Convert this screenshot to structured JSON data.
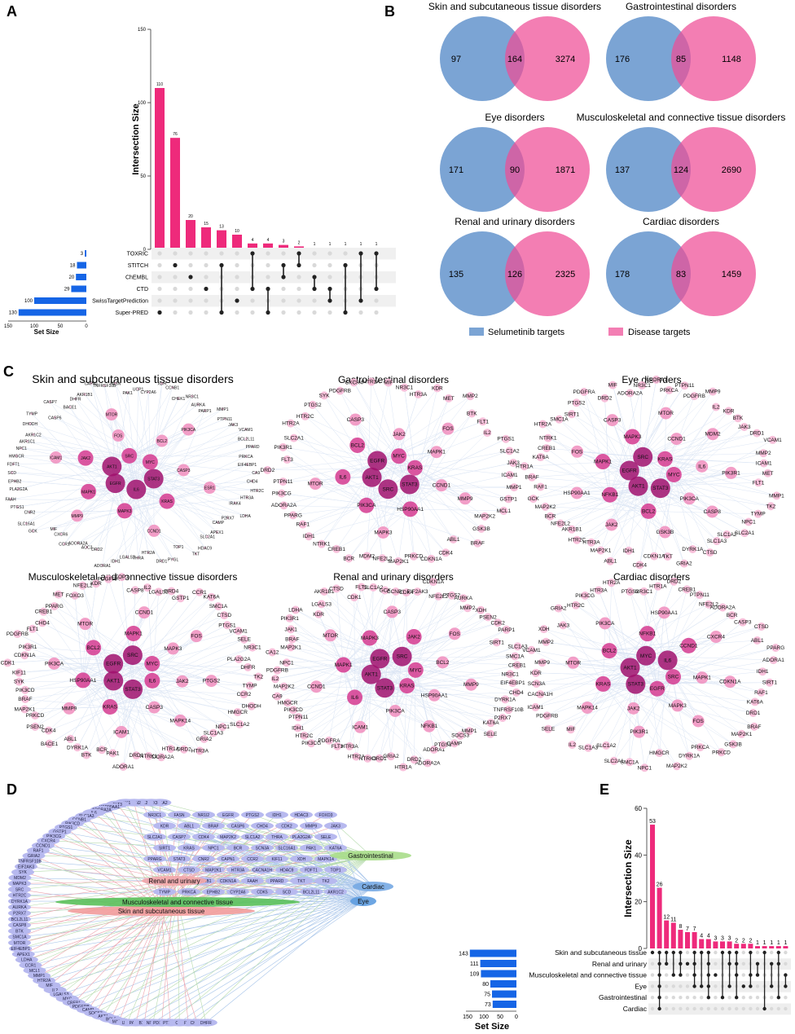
{
  "colors": {
    "pink": "#ee2a7b",
    "pink_venn": "#ee4c96",
    "blue_venn": "#4f86c6",
    "blue_bar": "#1565e6",
    "dark_dot": "#222222",
    "light_dot": "#d9d9d9",
    "node_dark": "#a0116d",
    "node_mid": "#d53a8f",
    "node_light": "#f08dbd",
    "edge": "#9ab6e0",
    "pill_blue": "#b7b9ef",
    "red_edge": "#d9334a",
    "green_edge": "#5fb04a",
    "blue_edge": "#3f7fd0"
  },
  "panels": {
    "a": "A",
    "b": "B",
    "c": "C",
    "d": "D",
    "e": "E"
  },
  "chart_data": [
    {
      "type": "bar",
      "panel": "A",
      "ylabel": "Intersection Size",
      "ylim": [
        0,
        150
      ],
      "yticks": [
        0,
        50,
        100,
        150
      ],
      "values": [
        110,
        76,
        20,
        15,
        13,
        10,
        4,
        4,
        3,
        2,
        1,
        1,
        1,
        1,
        1
      ],
      "value_labels": [
        "110",
        "76",
        "20",
        "15",
        "13",
        "10",
        "4",
        "4",
        "3",
        "2",
        "1",
        "1",
        "1",
        "1",
        "1"
      ],
      "sets": [
        "TOXRIC",
        "STITCH",
        "ChEMBL",
        "CTD",
        "SwissTargetPrediction",
        "Super-PRED"
      ],
      "set_sizes": [
        3,
        18,
        20,
        29,
        100,
        130
      ],
      "set_size_labels": [
        "3",
        "18",
        "20",
        "29",
        "100",
        "130"
      ],
      "set_size_label": "Set Size",
      "set_size_ticks": [
        "150",
        "100",
        "50",
        "0"
      ],
      "matrix": [
        [
          5
        ],
        [
          1
        ],
        [
          2
        ],
        [
          3
        ],
        [
          1,
          5
        ],
        [
          4
        ],
        [
          0,
          3
        ],
        [
          3,
          5
        ],
        [
          1,
          2
        ],
        [
          0,
          1
        ],
        [
          2,
          3
        ],
        [
          3,
          4
        ],
        [
          1,
          5
        ],
        [
          0,
          4
        ],
        [
          0,
          3
        ]
      ]
    },
    {
      "type": "venn",
      "panel": "B",
      "legend": [
        "Selumetinib targets",
        "Disease targets"
      ],
      "diagrams": [
        {
          "title": "Skin and subcutaneous tissue disorders",
          "left": "97",
          "both": "164",
          "right": "3274"
        },
        {
          "title": "Gastrointestinal disorders",
          "left": "176",
          "both": "85",
          "right": "1148"
        },
        {
          "title": "Eye disorders",
          "left": "171",
          "both": "90",
          "right": "1871"
        },
        {
          "title": "Musculoskeletal and connective tissue disorders",
          "left": "137",
          "both": "124",
          "right": "2690"
        },
        {
          "title": "Renal and urinary disorders",
          "left": "135",
          "both": "126",
          "right": "2325"
        },
        {
          "title": "Cardiac disorders",
          "left": "178",
          "both": "83",
          "right": "1459"
        }
      ]
    },
    {
      "type": "network",
      "panel": "C",
      "networks": [
        {
          "title": "Skin and subcutaneous tissue disorders",
          "hubs": [
            "STAT3",
            "IL6",
            "EGFR",
            "AKT1",
            "SRC",
            "MYC",
            "KRAS",
            "MAPK3",
            "MAPK1",
            "JAK2",
            "FOS",
            "BCL2",
            "CASP3",
            "CCND1",
            "MMP9",
            "ICAM1",
            "MTOR",
            "PIK3CA",
            "ESR1"
          ],
          "outer": [
            "CA9",
            "CHD4",
            "HTR2C",
            "HTR3A",
            "IRAK4",
            "LDHA",
            "P2RX7",
            "CAMP",
            "APEX1",
            "SLC2A1",
            "HDAC9",
            "TKT",
            "TOP1",
            "PYGL",
            "DRD1",
            "HTR2A",
            "THRA",
            "LGALS3",
            "IDH1",
            "ADORA1",
            "DRD2",
            "AOC3",
            "ADORA2A",
            "CCR1",
            "CXCR6",
            "MIF",
            "GCK",
            "SLC16A1",
            "CNR2",
            "PTGS1",
            "FAAH",
            "PLA2G2A",
            "EPHB2",
            "SCD",
            "FDFT1",
            "HMGCR",
            "NPC1",
            "AKR1C1",
            "AKR1C2",
            "DHODH",
            "TYMP",
            "CASP6",
            "CASP7",
            "BACE1",
            "DHFR",
            "AKR1B1",
            "CAPN1",
            "TNFRSF10B",
            "FASN",
            "PAK1",
            "UCP1",
            "CYP2A6",
            "XDH",
            "CCNB1",
            "CHEK1",
            "NR3C1",
            "AURKA",
            "PARP1",
            "MMP1",
            "PTPN11",
            "JAK3",
            "VCAM1",
            "BCL2L11",
            "PPARD",
            "PRKCA",
            "EIF4EBP1"
          ]
        },
        {
          "title": "Gastrointestinal disorders",
          "hubs": [
            "STAT3",
            "SRC",
            "AKT1",
            "EGFR",
            "MYC",
            "KRAS",
            "HSP90AA1",
            "PIK3CA",
            "IL6",
            "BCL2",
            "JAK2",
            "MAPK1",
            "CCND1",
            "MAPK3",
            "MTOR",
            "CASP3",
            "FOS",
            "MMP9"
          ],
          "outer": [
            "GSTP1",
            "MCL1",
            "MAP2K2",
            "GSK3B",
            "BRAF",
            "ABL1",
            "CDK4",
            "CDKN1A",
            "PRKCD",
            "MAP2K1",
            "NFE2L2",
            "MDM2",
            "BCR",
            "CREB1",
            "NTRK1",
            "IDH1",
            "RAF1",
            "PPARG",
            "ADORA2A",
            "PIK3CG",
            "PTPN11",
            "DRD2",
            "FLT3",
            "PIK3R1",
            "SLC2A1",
            "HTR2A",
            "HTR2C",
            "PTGS2",
            "SYK",
            "PDGFRB",
            "CXCR4",
            "HTR1A",
            "MIF",
            "NR3C1",
            "HTR3A",
            "KDR",
            "MET",
            "MMP2",
            "BTK",
            "FLT1",
            "IL2",
            "PTGS1",
            "SLC1A2",
            "JAK3",
            "ICAM1",
            "MMP1"
          ]
        },
        {
          "title": "Eye disorders",
          "hubs": [
            "STAT3",
            "AKT1",
            "EGFR",
            "SRC",
            "KRAS",
            "MYC",
            "BCL2",
            "NFKB1",
            "MAPK1",
            "MAPK3",
            "CCND1",
            "IL6",
            "PIK3CA",
            "JAK2",
            "HSP90AA1",
            "FOS",
            "CASP3",
            "MTOR",
            "MDM2",
            "PIK3R1",
            "CASP8",
            "GSK3B"
          ],
          "outer": [
            "NPC1",
            "SLC2A1",
            "SLC1A2",
            "SLC1A3",
            "CTSD",
            "DYRK1A",
            "GRIA2",
            "TKT",
            "CDKN1A",
            "CDK4",
            "IDH1",
            "ABL1",
            "MAP2K1",
            "HTR3A",
            "HTR2C",
            "AKR1B1",
            "NFE2L2",
            "BCR",
            "MAP2K2",
            "GCK",
            "RAF1",
            "BRAF",
            "HTR1A",
            "KAT6A",
            "CREB1",
            "NTRK1",
            "HTR2A",
            "SMC1A",
            "SIRT1",
            "PTGS2",
            "PDGFRA",
            "DRD2",
            "MIF",
            "ADORA2A",
            "NR3C1",
            "ADORA1",
            "PRKCA",
            "PTPN11",
            "PDGFRB",
            "MMP9",
            "IL2",
            "KDR",
            "BTK",
            "JAK3",
            "DRD1",
            "VCAM1",
            "MMP2",
            "ICAM1",
            "MET",
            "FLT1",
            "MMP1",
            "TK2",
            "TYMP"
          ]
        },
        {
          "title": "Musculoskeletal and connective tissue disorders",
          "hubs": [
            "STAT3",
            "AKT1",
            "EGFR",
            "SRC",
            "MYC",
            "IL6",
            "KRAS",
            "HSP90AA1",
            "BCL2",
            "MAPK1",
            "MAPK3",
            "JAK2",
            "CASP3",
            "MMP9",
            "PIK3CA",
            "MTOR",
            "CCND1",
            "FOS",
            "PTGS2",
            "MAPK14",
            "ICAM1"
          ],
          "outer": [
            "GRIA2",
            "HTR3A",
            "DRD2",
            "HTR1A",
            "ADORA2A",
            "NTRK1",
            "DRD1",
            "ADORA1",
            "PAK1",
            "BCR",
            "BTK",
            "DYRK1A",
            "ABL1",
            "BACE1",
            "CDK4",
            "PSEN2",
            "PRKCD",
            "MAP2K1",
            "BRAF",
            "PIK3CD",
            "SYK",
            "KIF11",
            "CDK1",
            "CDKN1A",
            "PIK3R1",
            "PDGFRB",
            "FLT1",
            "CHD4",
            "CREB1",
            "PPARG",
            "MET",
            "FOXO3",
            "NFE2L2",
            "KDR",
            "PDGFRA",
            "TOP1",
            "CASP8",
            "IL2",
            "LGALS3",
            "BRD4",
            "GSTP1",
            "CCR1",
            "KAT6A",
            "SMC1A",
            "CTSD",
            "PTGS1",
            "VCAM1",
            "SELE",
            "NR3C1",
            "PLA2G2A",
            "DHFR",
            "TK2",
            "TYMP",
            "CCR2",
            "DHODH",
            "HMGCR",
            "SLC1A2",
            "NPC1",
            "SLC1A3"
          ]
        },
        {
          "title": "Renal and urinary disorders",
          "hubs": [
            "STAT3",
            "AKT1",
            "EGFR",
            "SRC",
            "MYC",
            "KRAS",
            "IL6",
            "MAPK1",
            "MAPK3",
            "JAK2",
            "BCL2",
            "HSP90AA1",
            "PIK3CA",
            "CCND1",
            "MTOR",
            "CASP3",
            "FOS",
            "MMP9",
            "NFKB1",
            "ICAM1"
          ],
          "outer": [
            "ADORA1",
            "ADORA2A",
            "DRD2",
            "HTR1A",
            "GRIA2",
            "DRD1",
            "NTRK3",
            "HTR2A",
            "HTR3A",
            "FLT3",
            "PDGFRA",
            "PIK3CG",
            "HTR2C",
            "IDH1",
            "PTPN11",
            "PIK3CD",
            "HMGCR",
            "CA9",
            "MAP2K2",
            "IL2",
            "PDGFRB",
            "NPC1",
            "CA12",
            "MAP2K1",
            "BRAF",
            "JAK1",
            "PIK3R1",
            "LDHA",
            "KDR",
            "LGALS3",
            "AKR1B1",
            "CTSD",
            "CDK1",
            "FLT1",
            "SLC1A2",
            "GCK",
            "CCNB1",
            "CDK4",
            "EIF2AK3",
            "CDKN1A",
            "NFE2L2",
            "PTGS2",
            "AURKA",
            "MMP2",
            "XDH",
            "PSEN2",
            "CDK2",
            "PARP1",
            "SIRT1",
            "SLC1A3",
            "SMC1A",
            "CREB1",
            "NR3C1",
            "EIF4EBP1",
            "CHD4",
            "DYRK1A",
            "TNFRSF10B",
            "P2RX7",
            "KAT6A",
            "SELE",
            "MMP1",
            "SOCS3",
            "CAMP",
            "PTGS1"
          ]
        },
        {
          "title": "Cardiac disorders",
          "hubs": [
            "STAT3",
            "AKT1",
            "MYC",
            "IL6",
            "SRC",
            "EGFR",
            "KRAS",
            "BCL2",
            "NFKB1",
            "CCND1",
            "MAPK1",
            "MAPK3",
            "JAK2",
            "MTOR",
            "PIK3CA",
            "HSP90AA1",
            "CXCR4",
            "CDKN1A",
            "FOS",
            "PIK3R1",
            "MAPK14"
          ],
          "outer": [
            "HMGCR",
            "NPC1",
            "SMC1A",
            "SLC2A1",
            "SLC1A2",
            "SLC1A3",
            "IL2",
            "MIF",
            "SELE",
            "PDGFRB",
            "ICAM1",
            "CACNA1H",
            "SCN3A",
            "KDR",
            "MMP9",
            "VCAM1",
            "MMP2",
            "XDH",
            "JAK3",
            "GRIA2",
            "HTR2C",
            "PIK3CG",
            "HTR3A",
            "HTR2A",
            "PTGS2",
            "NR3C1",
            "HTR1A",
            "DRD2",
            "CREB1",
            "PTPN11",
            "NFE2L2",
            "ADORA2A",
            "BCR",
            "CASP3",
            "CTSD",
            "ABL1",
            "PPARG",
            "ADORA1",
            "IDH1",
            "SIRT1",
            "RAF1",
            "KAT6A",
            "DRD1",
            "BRAF",
            "MAP2K1",
            "GSK3B",
            "PRKCD",
            "PRKCA",
            "DYRK1A",
            "MAP2K2"
          ]
        }
      ]
    },
    {
      "type": "network",
      "panel": "D",
      "categories": [
        {
          "label": "Skin and subcutaneous tissue",
          "color": "#f29b9b"
        },
        {
          "label": "Musculoskeletal and connective tissue",
          "color": "#5ac05a"
        },
        {
          "label": "Renal and urinary",
          "color": "#f4a9a9"
        },
        {
          "label": "Gastrointestinal",
          "color": "#a8dd8a"
        },
        {
          "label": "Cardiac",
          "color": "#76a9e3"
        },
        {
          "label": "Eye",
          "color": "#5d9ce0"
        }
      ],
      "genes": [
        "SLC5A2",
        "P2RX3",
        "CA12",
        "PSEN2",
        "JAK1",
        "FLT3",
        "HSP90AA1",
        "ADORA2A",
        "IL6",
        "SLC1A3",
        "CCNB1",
        "PIK3CD",
        "PTGS1",
        "GSTP1",
        "PIK3CG",
        "CXCR4",
        "CCND1",
        "RAF1",
        "GRIA2",
        "TNFRSF10B",
        "EIF2AK3",
        "SYK",
        "MDM2",
        "MAPK3",
        "SRC",
        "HTR2C",
        "DYRK1A",
        "AURKA",
        "P2RX7",
        "BCL2L11",
        "CASP8",
        "BTK",
        "SMC1A",
        "MTOR",
        "EIF4EBP1",
        "APEX1",
        "LDHA",
        "CCR1",
        "MCL1",
        "MMP1",
        "HTR2A",
        "MIF",
        "IL2",
        "LGALS3",
        "MYC",
        "CREB1",
        "PDGFRB",
        "CAMP",
        "SOCS3",
        "AKT1",
        "BCL2",
        "MAPK1",
        "UCP1",
        "PARP1",
        "BRD4",
        "NFKB1",
        "PDGFRA",
        "PTPN11",
        "CA9",
        "FYN",
        "CHEK1",
        "DHFR",
        "NR3C1",
        "FASN",
        "NR1I2",
        "EGFR",
        "PTGS2",
        "IDH1",
        "HDAC3",
        "FOXO3",
        "KDR",
        "ABL1",
        "BRAF",
        "CASP6",
        "CHD4",
        "CDK2",
        "MMP9",
        "JAK3",
        "SLC2A1",
        "CASP7",
        "CDK4",
        "MAP2K2",
        "SLC1A2",
        "THRA",
        "PLA2G2A",
        "SELE",
        "SIRT1",
        "KRAS",
        "NPC1",
        "BCR",
        "SCN3A",
        "SLC16A1",
        "PAK1",
        "KAT6A",
        "PPARG",
        "STAT3",
        "CNR2",
        "CAPN1",
        "CCR2",
        "KIF11",
        "XDH",
        "MAPK14",
        "VCAM1",
        "CTSD",
        "MAP2K1",
        "HTR3A",
        "CACNA1H",
        "HDAC9",
        "FDFT1",
        "TOP1",
        "DHODH",
        "GCK",
        "AKR1B1",
        "CDKN1A",
        "FAAH",
        "PPARD",
        "TKT",
        "TK2",
        "TYMP",
        "PRKCA",
        "EPHB2",
        "CYP2A6",
        "CDK5",
        "SCD",
        "BCL2L11",
        "AKR1C2",
        "PYGL",
        "IRAK4",
        "AKT2"
      ],
      "bar_values": [
        143,
        111,
        109,
        80,
        75,
        73
      ],
      "bar_labels": [
        "143",
        "111",
        "109",
        "80",
        "75",
        "73"
      ],
      "bar_ticks": [
        "150",
        "100",
        "50",
        "0"
      ],
      "set_size_label": "Set Size"
    },
    {
      "type": "bar",
      "panel": "E",
      "ylabel": "Intersection Size",
      "ylim": [
        0,
        60
      ],
      "yticks": [
        0,
        20,
        40,
        60
      ],
      "values": [
        53,
        26,
        12,
        11,
        8,
        7,
        7,
        4,
        4,
        3,
        3,
        3,
        2,
        2,
        2,
        1,
        1,
        1,
        1,
        1
      ],
      "value_labels": [
        "53",
        "26",
        "12",
        "11",
        "8",
        "7",
        "7",
        "4",
        "4",
        "3",
        "3",
        "3",
        "2",
        "2",
        "2",
        "1",
        "1",
        "1",
        "1",
        "1"
      ],
      "sets": [
        "Skin and subcutaneous tissue",
        "Renal and urinary",
        "Musculoskeletal and connective tissue",
        "Eye",
        "Gastrointestinal",
        "Cardiac"
      ],
      "matrix": [
        [
          0
        ],
        [
          0,
          1,
          2,
          3,
          4,
          5
        ],
        [
          0,
          1
        ],
        [
          0,
          2
        ],
        [
          0,
          1,
          2
        ],
        [
          1
        ],
        [
          0,
          1,
          2,
          3
        ],
        [
          0,
          3
        ],
        [
          0,
          1,
          2,
          3,
          4
        ],
        [
          2
        ],
        [
          0,
          4
        ],
        [
          0,
          1,
          3
        ],
        [
          0,
          1,
          2,
          4
        ],
        [
          3
        ],
        [
          0,
          2,
          3
        ],
        [
          1,
          2
        ],
        [
          0,
          5
        ],
        [
          1,
          3
        ],
        [
          0,
          1,
          4
        ],
        [
          2,
          3
        ]
      ]
    }
  ]
}
